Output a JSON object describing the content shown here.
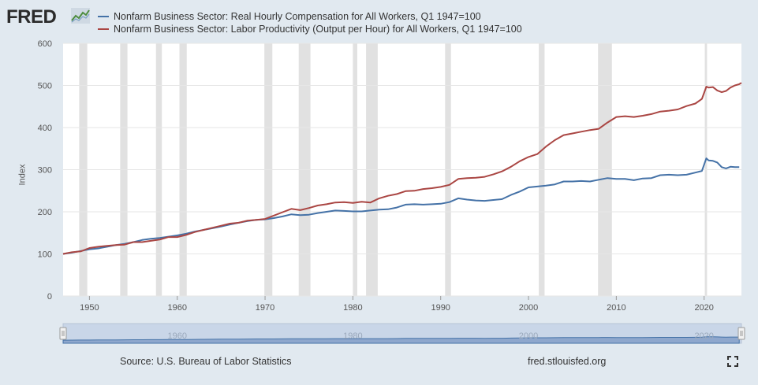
{
  "header": {
    "logo_text": "FRED",
    "logo_icon": "line-chart-icon"
  },
  "colors": {
    "background": "#e1e9f0",
    "plot_background": "#ffffff",
    "recession": "#e1e1e1",
    "compensation": "#4572a7",
    "productivity": "#aa4643",
    "navigator_fill": "#8ea7cd"
  },
  "footer": {
    "source": "Source: U.S. Bureau of Labor Statistics",
    "credit": "fred.stlouisfed.org",
    "fullscreen_icon": "fullscreen-icon"
  },
  "chart_data": {
    "type": "line",
    "title": "",
    "xlabel": "",
    "ylabel": "Index",
    "xlim": [
      1947.0,
      2024.25
    ],
    "ylim": [
      0,
      600
    ],
    "yticks": [
      0,
      100,
      200,
      300,
      400,
      500,
      600
    ],
    "xticks": [
      1950,
      1960,
      1970,
      1980,
      1990,
      2000,
      2010,
      2020
    ],
    "grid": true,
    "legend_position": "top",
    "navigator_labels": [
      "1960",
      "1980",
      "2000",
      "2020"
    ],
    "recessions": [
      [
        1948.83,
        1949.75
      ],
      [
        1953.5,
        1954.33
      ],
      [
        1957.58,
        1958.25
      ],
      [
        1960.25,
        1961.08
      ],
      [
        1969.92,
        1970.83
      ],
      [
        1973.83,
        1975.17
      ],
      [
        1980.0,
        1980.5
      ],
      [
        1981.5,
        1982.83
      ],
      [
        1990.5,
        1991.17
      ],
      [
        2001.17,
        2001.83
      ],
      [
        2007.92,
        2009.5
      ],
      [
        2020.08,
        2020.33
      ]
    ],
    "series": [
      {
        "name": "Nonfarm Business Sector: Real Hourly Compensation for All Workers, Q1 1947=100",
        "color": "#4572a7",
        "x": [
          1947.0,
          1948.0,
          1949.0,
          1950.0,
          1951.0,
          1952.0,
          1953.0,
          1954.0,
          1955.0,
          1956.0,
          1957.0,
          1958.0,
          1959.0,
          1960.0,
          1961.0,
          1962.0,
          1963.0,
          1964.0,
          1965.0,
          1966.0,
          1967.0,
          1968.0,
          1969.0,
          1970.0,
          1971.0,
          1972.0,
          1973.0,
          1974.0,
          1975.0,
          1976.0,
          1977.0,
          1978.0,
          1979.0,
          1980.0,
          1981.0,
          1982.0,
          1983.0,
          1984.0,
          1985.0,
          1986.0,
          1987.0,
          1988.0,
          1989.0,
          1990.0,
          1991.0,
          1992.0,
          1993.0,
          1994.0,
          1995.0,
          1996.0,
          1997.0,
          1998.0,
          1999.0,
          2000.0,
          2001.0,
          2002.0,
          2003.0,
          2004.0,
          2005.0,
          2006.0,
          2007.0,
          2008.0,
          2009.0,
          2010.0,
          2011.0,
          2012.0,
          2013.0,
          2014.0,
          2015.0,
          2016.0,
          2017.0,
          2018.0,
          2019.0,
          2019.75,
          2020.25,
          2020.5,
          2021.0,
          2021.5,
          2022.0,
          2022.5,
          2023.0,
          2023.5,
          2024.0
        ],
        "y": [
          100,
          103,
          107,
          111,
          113,
          117,
          121,
          124,
          128,
          133,
          136,
          138,
          141,
          144,
          148,
          153,
          157,
          161,
          165,
          170,
          174,
          178,
          181,
          182,
          185,
          189,
          194,
          192,
          193,
          197,
          200,
          203,
          202,
          201,
          201,
          203,
          205,
          206,
          210,
          217,
          218,
          217,
          218,
          219,
          223,
          232,
          229,
          227,
          226,
          228,
          230,
          240,
          248,
          258,
          260,
          262,
          265,
          272,
          272,
          273,
          272,
          276,
          280,
          278,
          278,
          275,
          279,
          280,
          287,
          288,
          287,
          288,
          293,
          297,
          327,
          322,
          321,
          317,
          306,
          303,
          307,
          306,
          306
        ]
      },
      {
        "name": "Nonfarm Business Sector: Labor Productivity (Output per Hour) for All Workers, Q1 1947=100",
        "color": "#aa4643",
        "x": [
          1947.0,
          1948.0,
          1949.0,
          1950.0,
          1951.0,
          1952.0,
          1953.0,
          1954.0,
          1955.0,
          1956.0,
          1957.0,
          1958.0,
          1959.0,
          1960.0,
          1961.0,
          1962.0,
          1963.0,
          1964.0,
          1965.0,
          1966.0,
          1967.0,
          1968.0,
          1969.0,
          1970.0,
          1971.0,
          1972.0,
          1973.0,
          1974.0,
          1975.0,
          1976.0,
          1977.0,
          1978.0,
          1979.0,
          1980.0,
          1981.0,
          1982.0,
          1983.0,
          1984.0,
          1985.0,
          1986.0,
          1987.0,
          1988.0,
          1989.0,
          1990.0,
          1991.0,
          1992.0,
          1993.0,
          1994.0,
          1995.0,
          1996.0,
          1997.0,
          1998.0,
          1999.0,
          2000.0,
          2001.0,
          2002.0,
          2003.0,
          2004.0,
          2005.0,
          2006.0,
          2007.0,
          2008.0,
          2009.0,
          2010.0,
          2011.0,
          2012.0,
          2013.0,
          2014.0,
          2015.0,
          2016.0,
          2017.0,
          2018.0,
          2019.0,
          2019.75,
          2020.25,
          2020.5,
          2021.0,
          2021.5,
          2022.0,
          2022.5,
          2023.0,
          2023.5,
          2024.0,
          2024.25
        ],
        "y": [
          100,
          104,
          106,
          114,
          117,
          119,
          121,
          122,
          128,
          128,
          131,
          134,
          140,
          140,
          145,
          152,
          157,
          162,
          167,
          172,
          174,
          179,
          181,
          183,
          191,
          199,
          207,
          204,
          209,
          215,
          218,
          222,
          223,
          221,
          224,
          222,
          232,
          238,
          242,
          249,
          250,
          254,
          256,
          259,
          264,
          278,
          280,
          281,
          283,
          289,
          296,
          307,
          320,
          330,
          337,
          355,
          370,
          382,
          386,
          390,
          394,
          397,
          412,
          425,
          427,
          425,
          428,
          432,
          438,
          440,
          443,
          451,
          457,
          468,
          497,
          495,
          496,
          488,
          484,
          487,
          495,
          500,
          503,
          506
        ]
      }
    ]
  }
}
